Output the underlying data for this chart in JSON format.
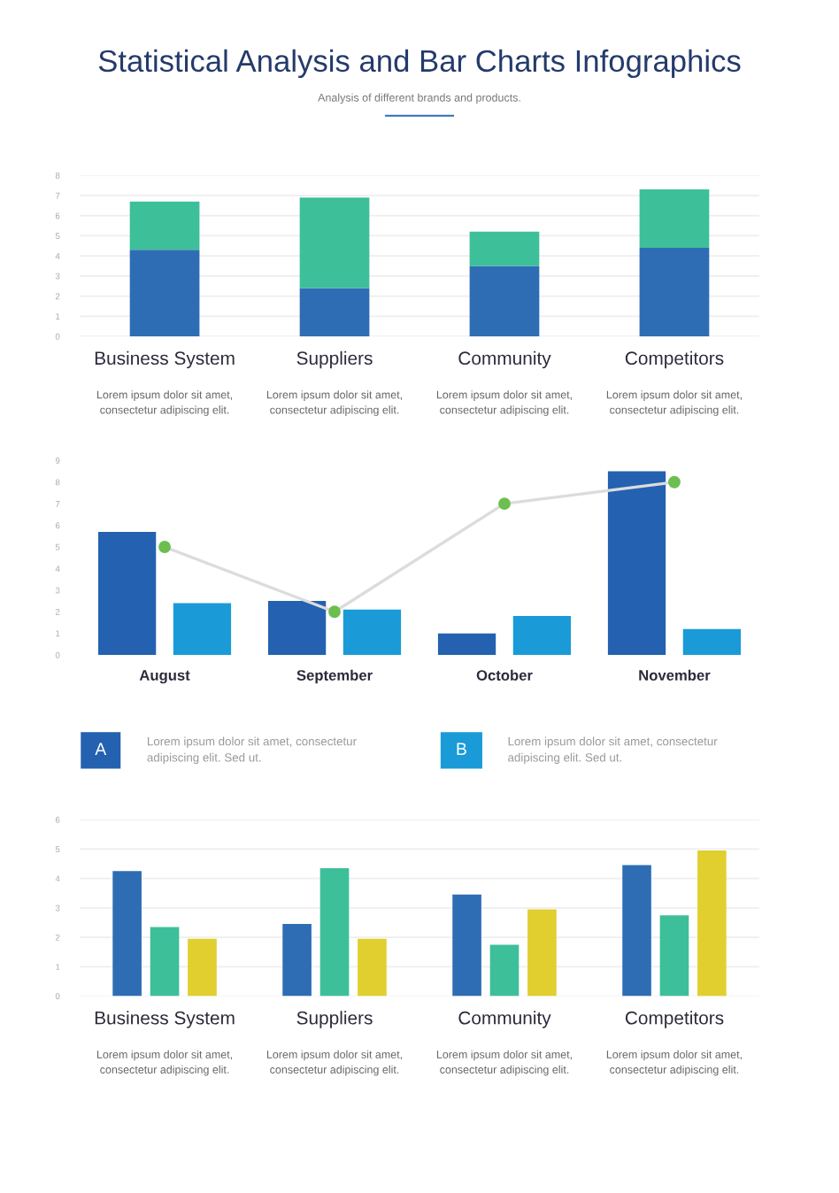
{
  "chart_data": [
    {
      "type": "bar",
      "title": "Statistical Analysis and Bar Charts Infographics",
      "subtitle": "Analysis of different brands and products.",
      "stacked": true,
      "categories": [
        "Business System",
        "Suppliers",
        "Community",
        "Competitors"
      ],
      "series": [
        {
          "color": "#2e6db4",
          "values": [
            4.3,
            2.4,
            3.5,
            4.4
          ]
        },
        {
          "color": "#3dbf9a",
          "values": [
            2.4,
            4.5,
            1.7,
            2.9
          ]
        }
      ],
      "ylim": [
        0,
        8
      ],
      "yticks": [
        0,
        1,
        2,
        3,
        4,
        5,
        6,
        7,
        8
      ],
      "grid": "y",
      "annotations": [
        "Lorem ipsum dolor sit amet,\nconsectetur adipiscing elit.",
        "Lorem ipsum dolor sit amet,\nconsectetur adipiscing elit.",
        "Lorem ipsum dolor sit amet,\nconsectetur adipiscing elit.",
        "Lorem ipsum dolor sit amet,\nconsectetur adipiscing elit."
      ]
    },
    {
      "type": "bar",
      "categories": [
        "August",
        "September",
        "October",
        "November"
      ],
      "series": [
        {
          "name": "A",
          "color": "#2461b0",
          "values": [
            5.7,
            2.5,
            1.0,
            8.5
          ]
        },
        {
          "name": "B",
          "color": "#1a9bd7",
          "values": [
            2.4,
            2.1,
            1.8,
            1.2
          ]
        },
        {
          "type": "line",
          "color": "#6cbf4f",
          "values": [
            5.0,
            2.0,
            7.0,
            8.0
          ]
        }
      ],
      "ylim": [
        0,
        9
      ],
      "yticks": [
        0,
        1,
        2,
        3,
        4,
        5,
        6,
        7,
        8,
        9
      ],
      "marker": "circle",
      "legend": "bottom",
      "annotations": [
        "Lorem ipsum dolor sit amet, consectetur\nadipiscing elit. Sed ut.",
        "Lorem ipsum dolor sit amet, consectetur\nadipiscing elit. Sed ut."
      ]
    },
    {
      "type": "bar",
      "categories": [
        "Business System",
        "Suppliers",
        "Community",
        "Competitors"
      ],
      "series": [
        {
          "color": "#2e6db4",
          "values": [
            4.25,
            2.45,
            3.45,
            4.45
          ]
        },
        {
          "color": "#3dbf9a",
          "values": [
            2.35,
            4.35,
            1.75,
            2.75
          ]
        },
        {
          "color": "#e0cf2f",
          "values": [
            1.95,
            1.95,
            2.95,
            4.95
          ]
        }
      ],
      "ylim": [
        0,
        6
      ],
      "yticks": [
        0,
        1,
        2,
        3,
        4,
        5,
        6
      ],
      "grid": "y",
      "annotations": [
        "Lorem ipsum dolor sit amet,\nconsectetur adipiscing elit.",
        "Lorem ipsum dolor sit amet,\nconsectetur adipiscing elit.",
        "Lorem ipsum dolor sit amet,\nconsectetur adipiscing elit.",
        "Lorem ipsum dolor sit amet,\nconsectetur adipiscing elit."
      ]
    }
  ]
}
